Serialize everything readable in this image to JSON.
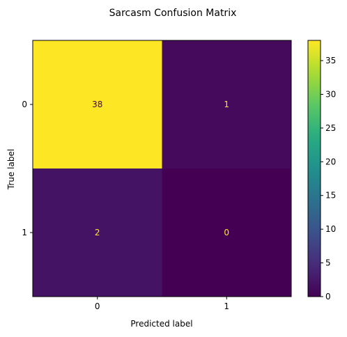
{
  "chart_data": {
    "type": "heatmap",
    "title": "Sarcasm Confusion Matrix",
    "xlabel": "Predicted label",
    "ylabel": "True label",
    "x_categories": [
      "0",
      "1"
    ],
    "y_categories": [
      "0",
      "1"
    ],
    "values": [
      [
        38,
        1
      ],
      [
        2,
        0
      ]
    ],
    "cell_labels": [
      [
        "38",
        "1"
      ],
      [
        "2",
        "0"
      ]
    ],
    "colormap": "viridis",
    "colorbar": {
      "range": [
        0,
        38
      ],
      "ticks": [
        0,
        5,
        10,
        15,
        20,
        25,
        30,
        35
      ],
      "tick_labels": [
        "0",
        "5",
        "10",
        "15",
        "20",
        "25",
        "30",
        "35"
      ]
    },
    "colors": {
      "low_cell_text": "#fde725",
      "high_cell_text": "#440154"
    },
    "grid": false
  }
}
